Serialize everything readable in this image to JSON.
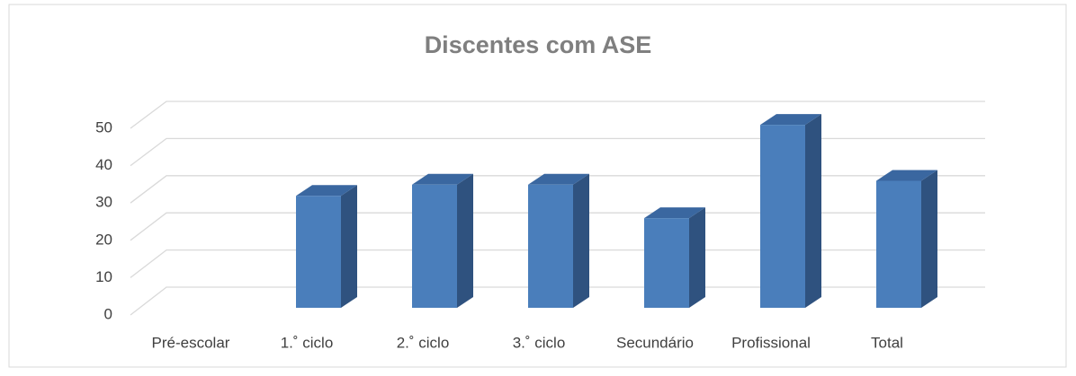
{
  "chart_data": {
    "type": "bar",
    "title": "Discentes com ASE",
    "categories": [
      "Pré-escolar",
      "1.˚ ciclo",
      "2.˚ ciclo",
      "3.˚ ciclo",
      "Secundário",
      "Profissional",
      "Total"
    ],
    "values": [
      0,
      30,
      33,
      33,
      24,
      49,
      34
    ],
    "color": "#4a7ebb",
    "ylim": [
      0,
      50
    ],
    "yticks": [
      0,
      10,
      20,
      30,
      40,
      50
    ],
    "grid": true
  }
}
